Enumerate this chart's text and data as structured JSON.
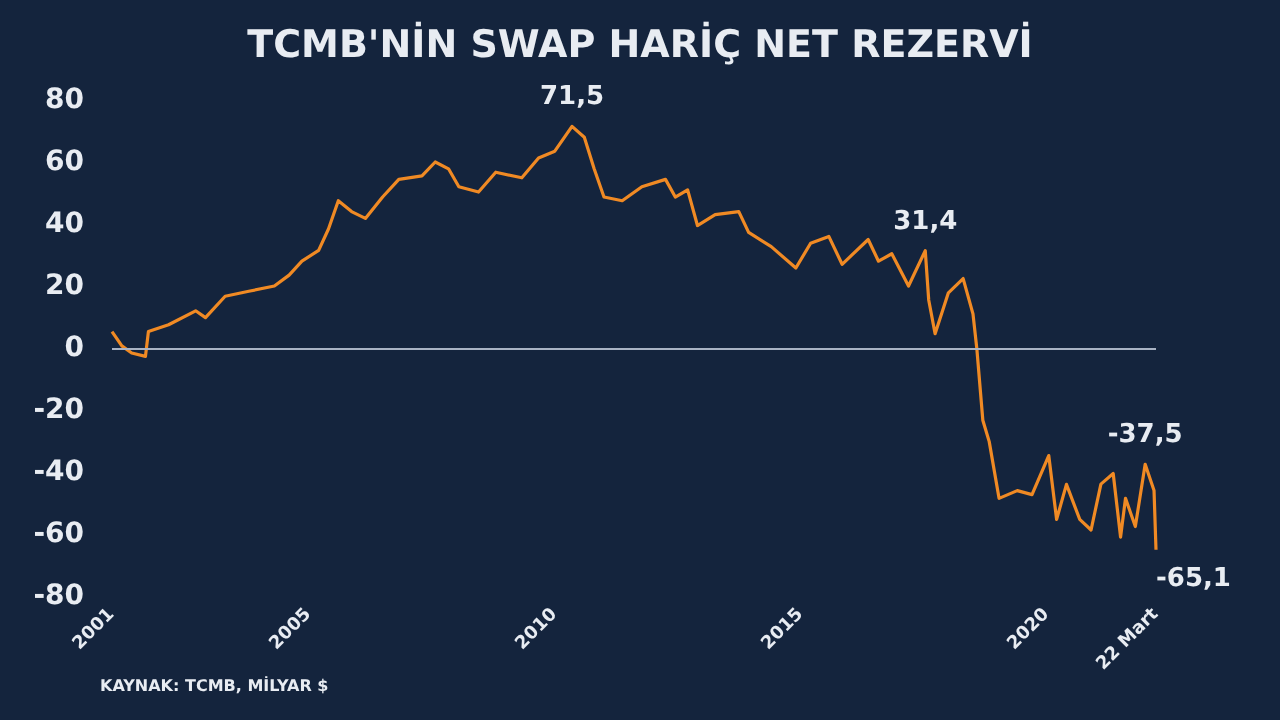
{
  "chart_data": {
    "type": "line",
    "title": "TCMB'NİN SWAP HARİÇ NET REZERVİ",
    "x": [
      2001.0,
      2001.2,
      2001.4,
      2001.68,
      2001.74,
      2002.15,
      2002.7,
      2002.9,
      2003.3,
      2003.78,
      2004.3,
      2004.6,
      2004.86,
      2005.2,
      2005.4,
      2005.6,
      2005.87,
      2006.15,
      2006.5,
      2006.83,
      2007.3,
      2007.57,
      2007.84,
      2008.05,
      2008.45,
      2008.8,
      2009.33,
      2009.67,
      2010.0,
      2010.35,
      2010.6,
      2010.8,
      2011.0,
      2011.37,
      2011.77,
      2012.25,
      2012.45,
      2012.7,
      2012.9,
      2013.26,
      2013.74,
      2013.94,
      2014.4,
      2014.9,
      2015.2,
      2015.57,
      2015.84,
      2016.37,
      2016.58,
      2016.85,
      2017.19,
      2017.53,
      2017.6,
      2017.73,
      2018.0,
      2018.3,
      2018.5,
      2018.58,
      2018.7,
      2018.83,
      2019.03,
      2019.4,
      2019.7,
      2020.04,
      2020.2,
      2020.4,
      2020.67,
      2020.9,
      2021.1,
      2021.35,
      2021.5,
      2021.6,
      2021.8,
      2022.0,
      2022.18,
      2022.22
    ],
    "series": [
      {
        "color": "#f08a24",
        "values": [
          5.3,
          0.7,
          -1.6,
          -2.7,
          5.3,
          7.5,
          12,
          9.8,
          16.7,
          18.3,
          20,
          23.5,
          28,
          31.5,
          38.4,
          47.5,
          44,
          41.8,
          48.7,
          54.4,
          55.5,
          60,
          57.8,
          52,
          50.3,
          56.7,
          54.9,
          61.3,
          63.5,
          71.5,
          68,
          57.8,
          48.7,
          47.5,
          52,
          54.4,
          48.7,
          51,
          39.5,
          43,
          44,
          37.3,
          32.7,
          25.8,
          33.8,
          36,
          27,
          35,
          28,
          30.4,
          20,
          31.4,
          15.5,
          4.6,
          17.8,
          22.4,
          11,
          -0.5,
          -23.3,
          -30.2,
          -48.5,
          -46,
          -47.3,
          -34.7,
          -55.3,
          -44,
          -55.3,
          -58.7,
          -43.9,
          -40.5,
          -61,
          -48.5,
          -57.6,
          -37.5,
          -46,
          -65.1
        ]
      }
    ],
    "xlim": [
      2001,
      2022.22
    ],
    "xticks": [
      2001,
      2005,
      2010,
      2015,
      2020,
      {
        "value": 2022.22,
        "label": "22 Mart"
      }
    ],
    "ylim": [
      -80,
      80
    ],
    "yticks": [
      -80,
      -60,
      -40,
      -20,
      0,
      20,
      40,
      60,
      80
    ],
    "grid": false,
    "marker": "none",
    "line_style": "solid",
    "ref_lines": [
      {
        "axis": "y",
        "value": 0,
        "color": "#a9b3c4"
      }
    ],
    "annotations": [
      {
        "text": "71,5",
        "x": 2010.35,
        "y": 71.5
      },
      {
        "text": "31,4",
        "x": 2017.53,
        "y": 31.4
      },
      {
        "text": "-37,5",
        "x": 2022.0,
        "y": -37.5
      },
      {
        "text": "-65,1",
        "x": 2022.22,
        "y": -65.1
      },
      "KAYNAK: TCMB, MİLYAR $"
    ]
  }
}
